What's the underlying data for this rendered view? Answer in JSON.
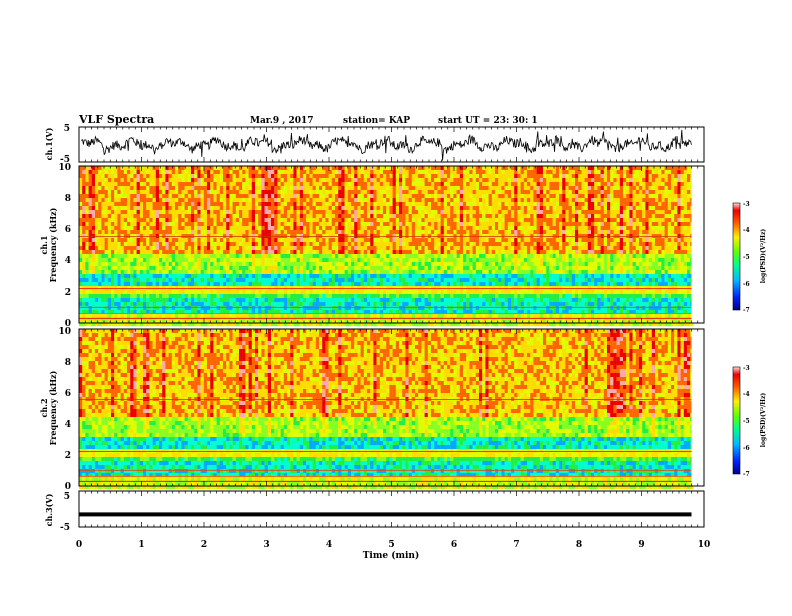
{
  "header": {
    "title": "VLF Spectra",
    "date": "Mar.9 , 2017",
    "station": "station= KAP",
    "start": "start UT = 23: 30: 1"
  },
  "colors": {
    "spectrum_bands": [
      "#0000aa",
      "#0044ff",
      "#00aaff",
      "#00ffcc",
      "#22ee44",
      "#88ff22",
      "#ddff00",
      "#ffdd00",
      "#ff6600",
      "#ee0000",
      "#ffaaaa"
    ],
    "trace": "#000000"
  },
  "chart_data": [
    {
      "id": "ch1-waveform",
      "type": "line",
      "ylabel": "ch.1(V)",
      "ylim": [
        -5,
        5
      ],
      "yticks": [
        "5",
        "-5"
      ],
      "xlim": [
        0,
        10
      ],
      "description_values": "noisy oscillating voltage trace, amplitude approx -3 to 3 V"
    },
    {
      "id": "ch1-spectrogram",
      "type": "heatmap",
      "ylabel": "ch.1\nFrequency (kHz)",
      "ylabel_line1": "ch.1",
      "ylabel_line2": "Frequency (kHz)",
      "ylim": [
        0,
        10
      ],
      "yticks": [
        "0",
        "2",
        "4",
        "6",
        "8",
        "10"
      ],
      "xlim": [
        0,
        10
      ],
      "colorbar": {
        "label": "log(PSD)(V²/Hz)",
        "range": [
          -7,
          -3
        ],
        "ticks": [
          "-3",
          "-4",
          "-5",
          "-6",
          "-7"
        ]
      }
    },
    {
      "id": "ch2-spectrogram",
      "type": "heatmap",
      "ylabel_line1": "ch.2",
      "ylabel_line2": "Frequency (kHz)",
      "ylim": [
        0,
        10
      ],
      "yticks": [
        "0",
        "2",
        "4",
        "6",
        "8",
        "10"
      ],
      "xlim": [
        0,
        10
      ],
      "colorbar": {
        "label": "log(PSD)(V²/Hz)",
        "range": [
          -7,
          -3
        ],
        "ticks": [
          "-3",
          "-4",
          "-5",
          "-6",
          "-7"
        ]
      }
    },
    {
      "id": "ch3-waveform",
      "type": "line",
      "ylabel": "ch.3(V)",
      "ylim": [
        -5,
        5
      ],
      "yticks": [
        "5",
        "-5"
      ],
      "xlim": [
        0,
        10
      ],
      "level": -1.5
    }
  ],
  "xaxis": {
    "label": "Time (min)",
    "ticks": [
      "0",
      "1",
      "2",
      "3",
      "4",
      "5",
      "6",
      "7",
      "8",
      "9",
      "10"
    ],
    "data_end": 9.8
  }
}
